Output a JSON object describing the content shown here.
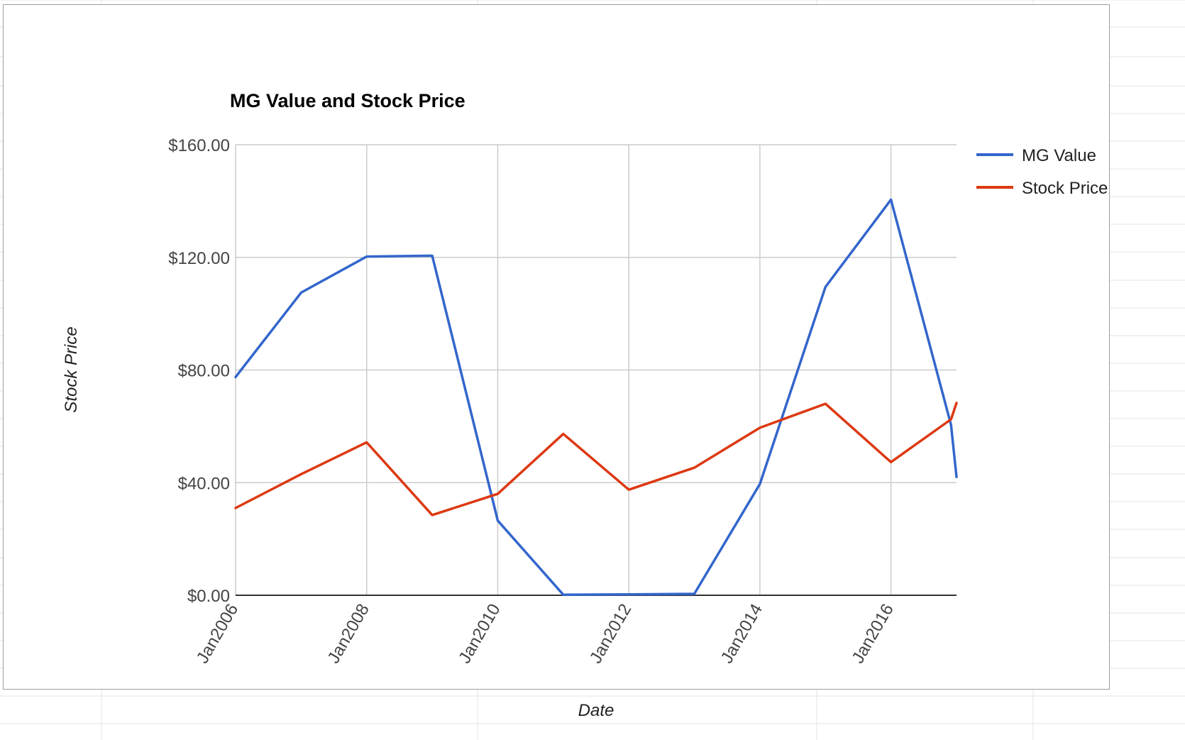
{
  "chart_data": {
    "type": "line",
    "title": "MG Value and Stock Price",
    "xlabel": "Date",
    "ylabel": "Stock Price",
    "x": [
      "2006-01",
      "2007-01",
      "2008-01",
      "2009-01",
      "2010-01",
      "2011-01",
      "2012-01",
      "2013-01",
      "2014-01",
      "2015-01",
      "2016-01",
      "2016-12",
      "2017-01"
    ],
    "x_ticks": [
      "Jan2006",
      "Jan2008",
      "Jan2010",
      "Jan2012",
      "Jan2014",
      "Jan2016"
    ],
    "ylim": [
      0,
      160
    ],
    "y_ticks": [
      "$0.00",
      "$40.00",
      "$80.00",
      "$120.00",
      "$160.00"
    ],
    "series": [
      {
        "name": "MG Value",
        "color": "#3366cc",
        "values": [
          77.5,
          107.5,
          120.3,
          120.6,
          26.5,
          0.2,
          0.3,
          0.5,
          39.5,
          109.5,
          140.5,
          60.5,
          42.0
        ]
      },
      {
        "name": "Stock Price",
        "color": "#dc3912",
        "values": [
          31.0,
          43.0,
          54.3,
          28.5,
          36.0,
          57.3,
          37.5,
          45.3,
          59.5,
          68.0,
          47.3,
          62.5,
          68.3
        ]
      }
    ],
    "grid": true,
    "legend": "right"
  }
}
